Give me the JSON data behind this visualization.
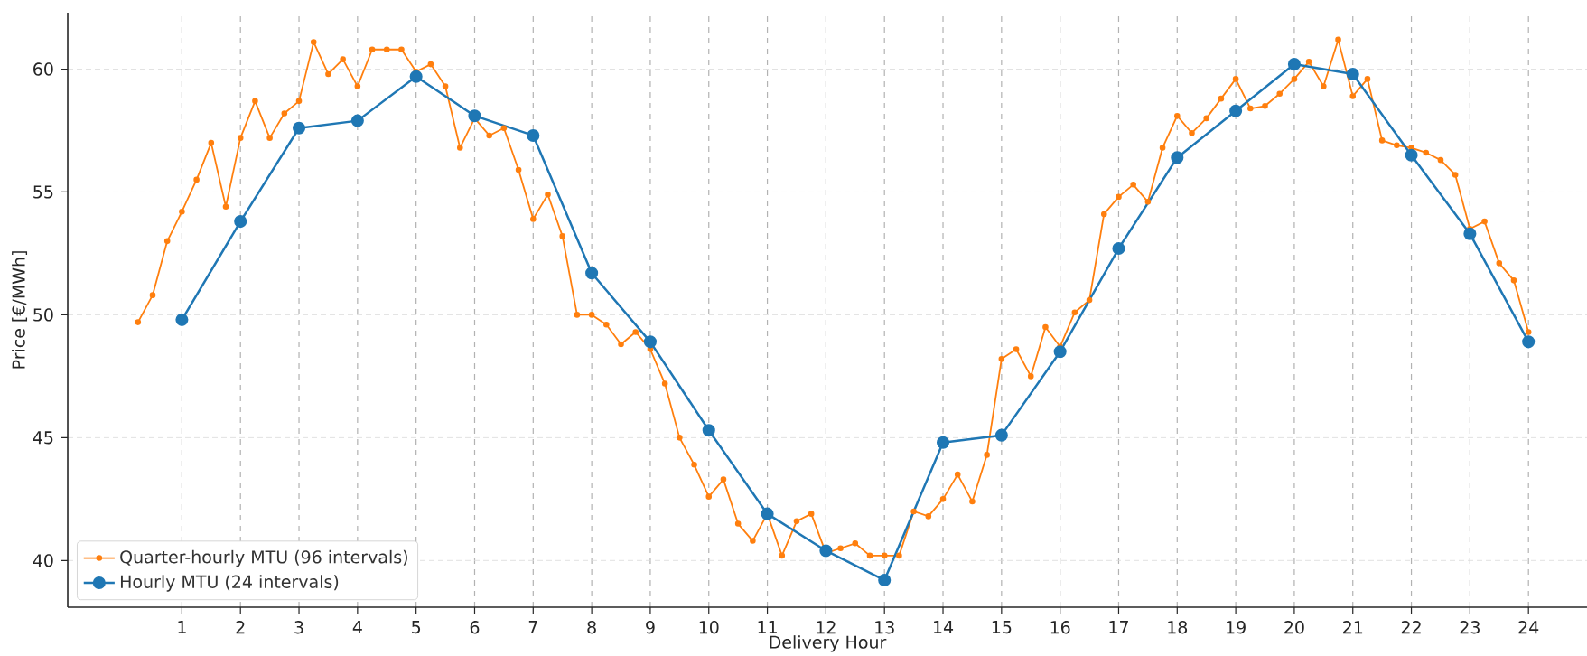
{
  "chart_data": {
    "type": "line",
    "xlabel": "Delivery Hour",
    "ylabel": "Price [€/MWh]",
    "xlim": [
      -0.95,
      25.0
    ],
    "ylim": [
      38.1,
      62.3
    ],
    "xticks": [
      1,
      2,
      3,
      4,
      5,
      6,
      7,
      8,
      9,
      10,
      11,
      12,
      13,
      14,
      15,
      16,
      17,
      18,
      19,
      20,
      21,
      22,
      23,
      24
    ],
    "yticks": [
      40,
      45,
      50,
      55,
      60
    ],
    "grid": true,
    "legend": "bottom left",
    "line_style": "solid",
    "series": [
      {
        "name": "Quarter-hourly MTU (96 intervals)",
        "color": "#ff7f0e",
        "marker": "circle",
        "x": [
          0.25,
          0.5,
          0.75,
          1,
          1.25,
          1.5,
          1.75,
          2,
          2.25,
          2.5,
          2.75,
          3,
          3.25,
          3.5,
          3.75,
          4,
          4.25,
          4.5,
          4.75,
          5,
          5.25,
          5.5,
          5.75,
          6,
          6.25,
          6.5,
          6.75,
          7,
          7.25,
          7.5,
          7.75,
          8,
          8.25,
          8.5,
          8.75,
          9,
          9.25,
          9.5,
          9.75,
          10,
          10.25,
          10.5,
          10.75,
          11,
          11.25,
          11.5,
          11.75,
          12,
          12.25,
          12.5,
          12.75,
          13,
          13.25,
          13.5,
          13.75,
          14,
          14.25,
          14.5,
          14.75,
          15,
          15.25,
          15.5,
          15.75,
          16,
          16.25,
          16.5,
          16.75,
          17,
          17.25,
          17.5,
          17.75,
          18,
          18.25,
          18.5,
          18.75,
          19,
          19.25,
          19.5,
          19.75,
          20,
          20.25,
          20.5,
          20.75,
          21,
          21.25,
          21.5,
          21.75,
          22,
          22.25,
          22.5,
          22.75,
          23,
          23.25,
          23.5,
          23.75,
          24
        ],
        "values": [
          49.7,
          50.8,
          53.0,
          54.2,
          55.5,
          57.0,
          54.4,
          57.2,
          58.7,
          57.2,
          58.2,
          58.7,
          61.1,
          59.8,
          60.4,
          59.3,
          60.8,
          60.8,
          60.8,
          59.9,
          60.2,
          59.3,
          56.8,
          58.0,
          57.3,
          57.6,
          55.9,
          53.9,
          54.9,
          53.2,
          50.0,
          50.0,
          49.6,
          48.8,
          49.3,
          48.6,
          47.2,
          45.0,
          43.9,
          42.6,
          43.3,
          41.5,
          40.8,
          41.9,
          40.2,
          41.6,
          41.9,
          40.3,
          40.5,
          40.7,
          40.2,
          40.2,
          40.2,
          42.0,
          41.8,
          42.5,
          43.5,
          42.4,
          44.3,
          48.2,
          48.6,
          47.5,
          49.5,
          48.7,
          50.1,
          50.6,
          54.1,
          54.8,
          55.3,
          54.6,
          56.8,
          58.1,
          57.4,
          58.0,
          58.8,
          59.6,
          58.4,
          58.5,
          59.0,
          59.6,
          60.3,
          59.3,
          61.2,
          58.9,
          59.6,
          57.1,
          56.9,
          56.8,
          56.6,
          56.3,
          55.7,
          53.5,
          53.8,
          52.1,
          51.4,
          49.3
        ]
      },
      {
        "name": "Hourly MTU (24 intervals)",
        "color": "#1f77b4",
        "marker": "circle",
        "x": [
          1,
          2,
          3,
          4,
          5,
          6,
          7,
          8,
          9,
          10,
          11,
          12,
          13,
          14,
          15,
          16,
          17,
          18,
          19,
          20,
          21,
          22,
          23,
          24
        ],
        "values": [
          49.8,
          53.8,
          57.6,
          57.9,
          59.7,
          58.1,
          57.3,
          51.7,
          48.9,
          45.3,
          41.9,
          40.4,
          39.2,
          44.8,
          45.1,
          48.5,
          52.7,
          56.4,
          58.3,
          60.2,
          59.8,
          56.5,
          53.3,
          48.9
        ]
      }
    ]
  }
}
